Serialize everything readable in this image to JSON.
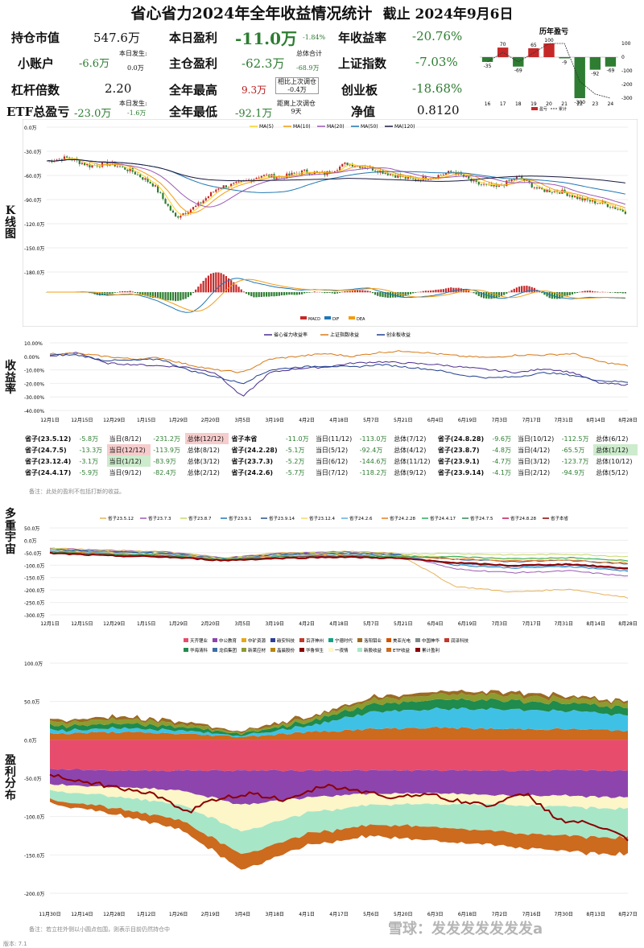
{
  "title": "省心省力2024年全年收益情况统计",
  "date_label": "截止 2024年9月6日",
  "stats": {
    "hold_label": "持仓市值",
    "hold_value": "547.6万",
    "today_label": "本日盈利",
    "today_value": "-11.0万",
    "today_pct": "-1.84%",
    "year_rate_label": "年收益率",
    "year_rate_value": "-20.76%",
    "small_label": "小账户",
    "small_value": "-6.6万",
    "small_today_label": "本日发生:",
    "small_today_value": "0.0万",
    "main_label": "主仓盈利",
    "main_value": "-62.3万",
    "total_label": "总体合计",
    "total_value": "-68.9万",
    "sh_label": "上证指数",
    "sh_value": "-7.03%",
    "lev_label": "杠杆倍数",
    "lev_value": "2.20",
    "high_label": "全年最高",
    "high_value": "9.3万",
    "vs_last_label": "相比上次调仓",
    "vs_last_value": "-0.4万",
    "days_label": "距离上次调仓",
    "days_value": "9天",
    "cyb_label": "创业板",
    "cyb_value": "-18.68%",
    "etf_label": "ETF总盈亏",
    "etf_value": "-23.0万",
    "etf_today_label": "本日发生:",
    "etf_today_value": "-1.6万",
    "low_label": "全年最低",
    "low_value": "-92.1万",
    "nav_label": "净值",
    "nav_value": "0.8120"
  },
  "side_labels": {
    "k": "K线图",
    "rate": "收益率",
    "multi": "多重宇宙",
    "pnl": "盈利分布"
  },
  "compare_table": [
    [
      "省子(23.5.12)",
      "-5.8万",
      "当日(8/12)",
      "-231.2万",
      "总体(12/12)",
      "省子本省",
      "-11.0万",
      "当日(11/12)",
      "-113.0万",
      "总体(7/12)",
      "省子(24.8.28)",
      "-9.6万",
      "当日(10/12)",
      "-112.5万",
      "总体(6/12)"
    ],
    [
      "省子(24.7.5)",
      "-13.3万",
      "当日(12/12)",
      "-113.9万",
      "总体(8/12)",
      "省子(24.2.28)",
      "-5.1万",
      "当日(5/12)",
      "-92.4万",
      "总体(4/12)",
      "省子(23.8.7)",
      "-4.8万",
      "当日(4/12)",
      "-65.5万",
      "总体(1/12)"
    ],
    [
      "省子(23.12.4)",
      "-3.1万",
      "当日(1/12)",
      "-83.9万",
      "总体(3/12)",
      "省子(23.7.3)",
      "-5.2万",
      "当日(6/12)",
      "-144.6万",
      "总体(11/12)",
      "省子(23.9.1)",
      "-4.7万",
      "当日(3/12)",
      "-123.7万",
      "总体(10/12)"
    ],
    [
      "省子(24.4.17)",
      "-5.9万",
      "当日(9/12)",
      "-82.4万",
      "总体(2/12)",
      "省子(24.2.6)",
      "-5.7万",
      "当日(7/12)",
      "-118.2万",
      "总体(9/12)",
      "省子(23.9.14)",
      "-4.1万",
      "当日(2/12)",
      "-94.9万",
      "总体(5/12)"
    ]
  ],
  "table_note": "备注：此处的盈利不包括打新的收益。",
  "bottom_note": "备注：若立柱外侧以小圆点包围，则表示目前仍然持仓中",
  "version": "版本: 7.1",
  "watermark": "雪球：发发发发发发发a",
  "colors": {
    "up": "#c62828",
    "down": "#2e7d32",
    "ma5": "#f9d423",
    "ma10": "#f39c12",
    "ma20": "#9b59b6",
    "ma50": "#1f77b4",
    "ma120": "#1a1a40",
    "curve": "#8b0000"
  },
  "chart_data": [
    {
      "type": "bar",
      "title": "历年盈亏",
      "categories": [
        "16",
        "17",
        "18",
        "19",
        "20",
        "21",
        "22",
        "23",
        "24"
      ],
      "values": [
        -35,
        70,
        -69,
        65,
        100,
        -9,
        -300,
        -92,
        -69
      ],
      "ylim": [
        -300,
        100
      ],
      "yticks": [
        "100",
        "0",
        "-100",
        "-200",
        "-300"
      ],
      "legend": [
        "盈亏",
        "累计"
      ]
    },
    {
      "type": "line",
      "title": "K线图",
      "legend": [
        "MA(5)",
        "MA(10)",
        "MA(20)",
        "MA(50)",
        "MA(120)"
      ],
      "yticks": [
        "0.0万",
        "-30.0万",
        "-60.0万",
        "-90.0万",
        "-120.0万",
        "-150.0万",
        "-180.0万"
      ],
      "ylim": [
        -180,
        0
      ],
      "macd_legend": [
        "MACD",
        "DIF",
        "DEA"
      ]
    },
    {
      "type": "line",
      "title": "收益率",
      "legend": [
        "省心省力收益率",
        "上证指数收益",
        "创业板收益"
      ],
      "yticks": [
        "10.00%",
        "0.00%",
        "-10.00%",
        "-20.00%",
        "-30.00%",
        "-40.00%"
      ],
      "xticks": [
        "12月1日",
        "12月15日",
        "12月29日",
        "1月15日",
        "1月29日",
        "2月20日",
        "3月5日",
        "3月19日",
        "4月2日",
        "4月18日",
        "5月7日",
        "5月21日",
        "6月4日",
        "6月19日",
        "7月3日",
        "7月17日",
        "7月31日",
        "8月14日",
        "8月28日"
      ],
      "series": [
        {
          "name": "省心省力收益率",
          "values": [
            0,
            3,
            -5,
            -6,
            -7,
            -8,
            -12,
            -30,
            -12,
            -9,
            -8,
            -5,
            -4,
            -5,
            -6,
            -8,
            -10,
            -12,
            -9,
            -12,
            -20,
            -21
          ]
        },
        {
          "name": "上证指数收益",
          "values": [
            2,
            2,
            0,
            -2,
            -1,
            -6,
            -10,
            -12,
            -2,
            0,
            2,
            0,
            3,
            4,
            2,
            0,
            -1,
            1,
            1,
            2,
            -4,
            -7
          ]
        },
        {
          "name": "创业板收益",
          "values": [
            1,
            1,
            -3,
            -3,
            -2,
            -10,
            -15,
            -20,
            -10,
            -8,
            -7,
            -8,
            -6,
            -8,
            -10,
            -14,
            -16,
            -15,
            -12,
            -14,
            -18,
            -19
          ]
        }
      ]
    },
    {
      "type": "line",
      "title": "多重宇宙",
      "legend": [
        "省子23.5.12",
        "省子23.7.3",
        "省子23.8.7",
        "省子23.9.1",
        "省子23.9.14",
        "省子23.12.4",
        "省子24.2.6",
        "省子24.2.28",
        "省子24.4.17",
        "省子24.7.5",
        "省子24.8.28",
        "省子本省"
      ],
      "yticks": [
        "50.0万",
        "0.0万",
        "-50.0万",
        "-100.0万",
        "-150.0万",
        "-200.0万",
        "-250.0万",
        "-300.0万"
      ],
      "xticks": [
        "12月1日",
        "12月15日",
        "12月29日",
        "1月15日",
        "1月29日",
        "2月20日",
        "3月5日",
        "3月19日",
        "4月2日",
        "4月18日",
        "5月7日",
        "5月21日",
        "6月4日",
        "6月19日",
        "7月3日",
        "7月17日",
        "7月31日",
        "8月14日",
        "8月28日"
      ],
      "final_values": [
        -231.2,
        -144.6,
        -65.5,
        -123.7,
        -94.9,
        -83.9,
        -118.2,
        -92.4,
        -82.4,
        -113.9,
        -112.5,
        -113.0
      ]
    },
    {
      "type": "area",
      "title": "盈利分布",
      "legend": [
        "天齐锂业",
        "中公教育",
        "中矿资源",
        "碳安科技",
        "百济神州",
        "宁德时代",
        "洛阳钼业",
        "美亚光电",
        "中国神华",
        "润泽科技",
        "华海清科",
        "龙佰集团",
        "新莱应材",
        "晶晨股份",
        "华鲁恒生",
        "一夜情",
        "新股收益",
        "ETF收益",
        "累计盈利"
      ],
      "yticks": [
        "100.0万",
        "50.0万",
        "0.0万",
        "-50.0万",
        "-100.0万",
        "-150.0万",
        "-200.0万"
      ],
      "xticks": [
        "11月30日",
        "12月14日",
        "12月28日",
        "1月12日",
        "1月26日",
        "2月19日",
        "3月4日",
        "3月18日",
        "4月1日",
        "4月17日",
        "5月6日",
        "5月20日",
        "6月3日",
        "6月18日",
        "7月2日",
        "7月16日",
        "7月30日",
        "8月13日",
        "8月27日"
      ]
    }
  ]
}
